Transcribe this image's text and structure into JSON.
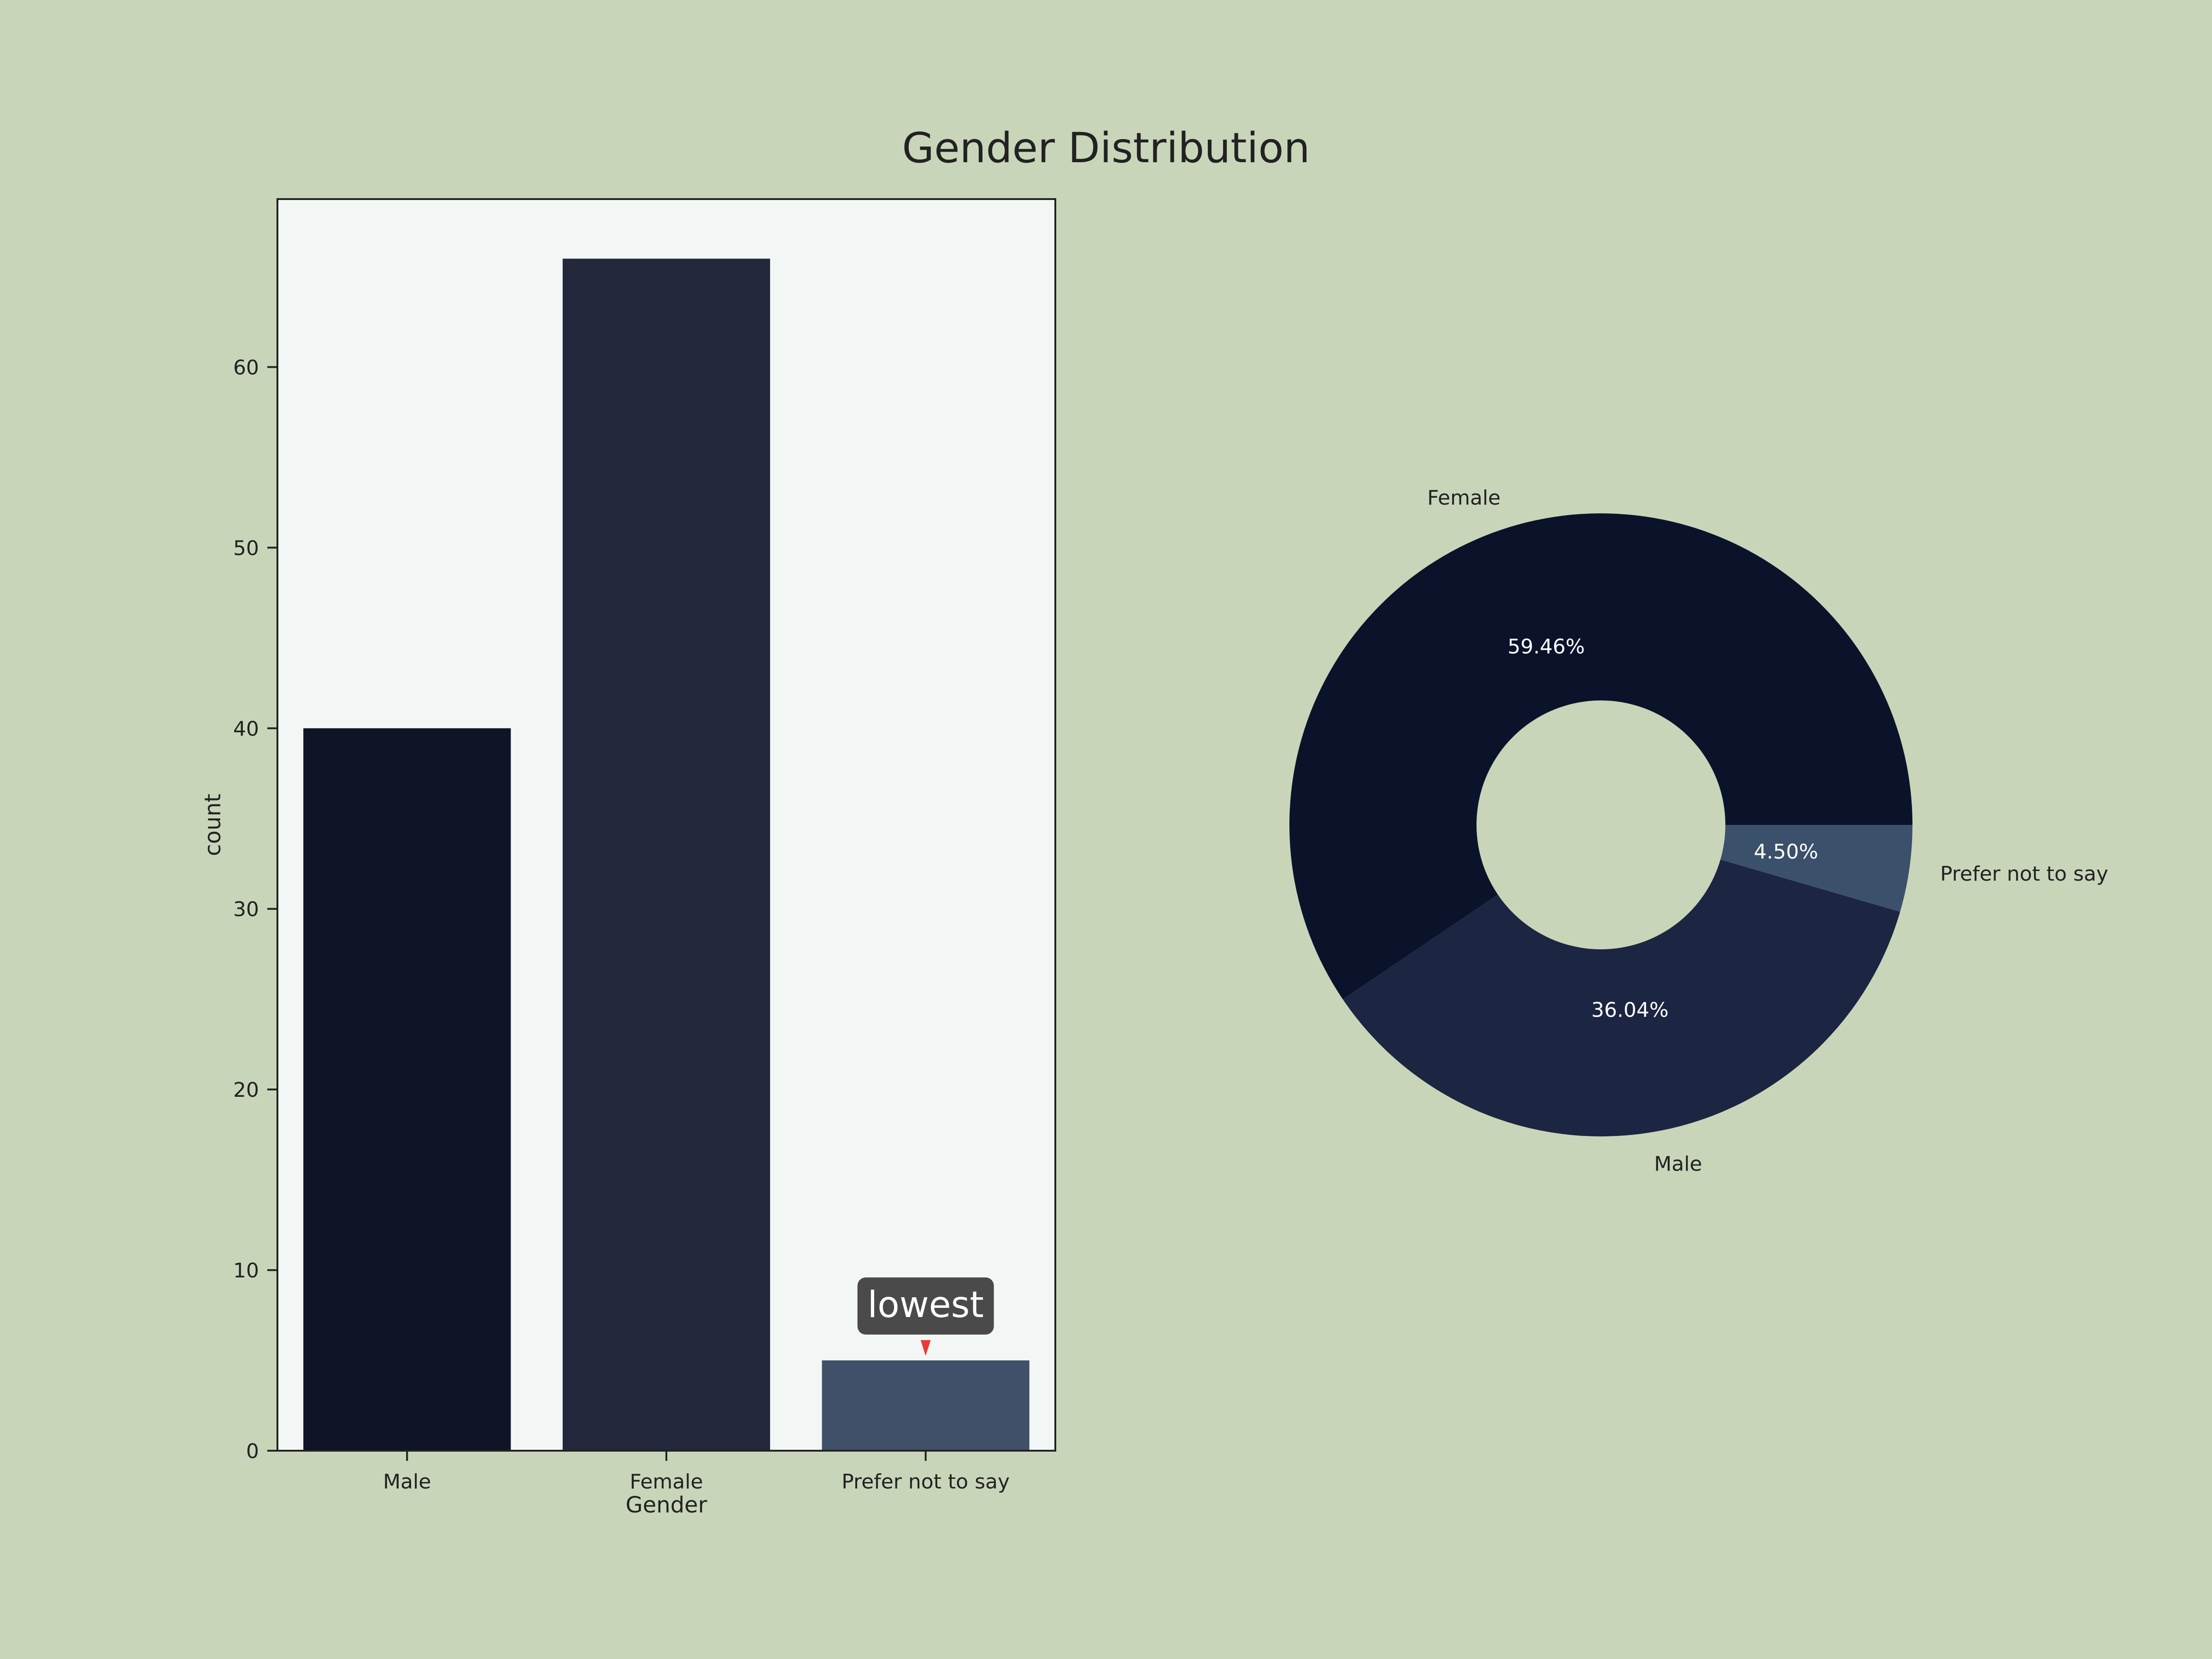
{
  "figure": {
    "title": "Gender Distribution",
    "background": "#c9d5b9"
  },
  "chart_data": [
    {
      "type": "bar",
      "title": "",
      "xlabel": "Gender",
      "ylabel": "count",
      "categories": [
        "Male",
        "Female",
        "Prefer not to say"
      ],
      "values": [
        40,
        66,
        5
      ],
      "ylim": [
        0,
        69.3
      ],
      "yticks": [
        "0",
        "10",
        "20",
        "30",
        "40",
        "50",
        "60"
      ],
      "grid": false,
      "plot_background": "#f2f7f5",
      "colors": [
        "#0f1426",
        "#23283d",
        "#3f5068"
      ],
      "annotation": {
        "text": "lowest",
        "target": "Prefer not to say",
        "arrow_color": "#e83a3a",
        "box_color": "#4a4a4a"
      }
    },
    {
      "type": "pie",
      "style": "donut",
      "labels": [
        "Female",
        "Male",
        "Prefer not to say"
      ],
      "values": [
        59.46,
        36.04,
        4.5
      ],
      "pct_labels": [
        "59.46%",
        "36.04%",
        "4.50%"
      ],
      "colors": [
        "#0b132b",
        "#1c2541",
        "#3a506b"
      ]
    }
  ]
}
